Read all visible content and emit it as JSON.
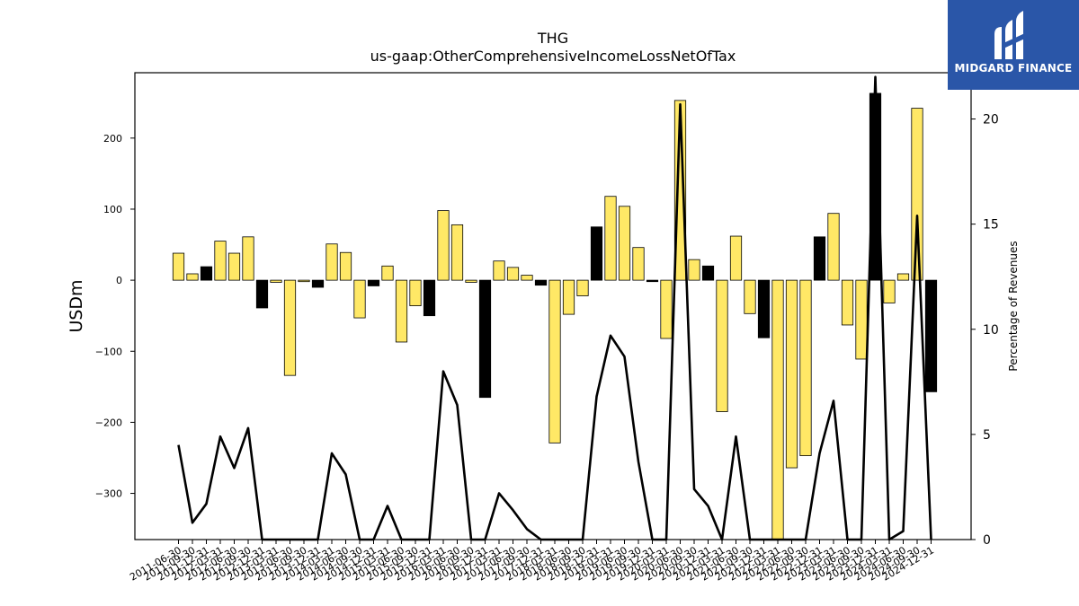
{
  "chart_data": {
    "type": "bar+line",
    "title": "THG",
    "subtitle": "us-gaap:OtherComprehensiveIncomeLossNetOfTax",
    "ylabel": "USDm",
    "y2label": "Percentage of Revenues",
    "ylim": [
      -365,
      292
    ],
    "y2lim": [
      0,
      22.2
    ],
    "yticks": [
      -300,
      -200,
      -100,
      0,
      100,
      200
    ],
    "y2ticks": [
      0,
      5,
      10,
      15,
      20
    ],
    "categories": [
      "2011-06-30",
      "2011-09-30",
      "2011-12-31",
      "2012-03-31",
      "2012-06-30",
      "2012-09-30",
      "2012-12-31",
      "2013-03-31",
      "2013-06-30",
      "2013-09-30",
      "2013-12-31",
      "2014-03-31",
      "2014-06-30",
      "2014-09-30",
      "2014-12-31",
      "2015-03-31",
      "2015-06-30",
      "2015-09-30",
      "2015-12-31",
      "2016-03-31",
      "2016-06-30",
      "2016-09-30",
      "2016-12-31",
      "2017-03-31",
      "2017-06-30",
      "2017-09-30",
      "2017-12-31",
      "2018-03-31",
      "2018-06-30",
      "2018-09-30",
      "2018-12-31",
      "2019-03-31",
      "2019-06-30",
      "2019-09-30",
      "2019-12-31",
      "2020-03-31",
      "2020-06-30",
      "2020-09-30",
      "2020-12-31",
      "2021-03-31",
      "2021-06-30",
      "2021-09-30",
      "2021-12-31",
      "2022-03-31",
      "2022-06-30",
      "2022-09-30",
      "2022-12-31",
      "2023-03-31",
      "2023-06-30",
      "2023-09-30",
      "2023-12-31",
      "2024-03-31",
      "2024-06-30",
      "2024-09-30",
      "2024-12-31"
    ],
    "series": [
      {
        "values": [
          38,
          9,
          19,
          55,
          38,
          61,
          -39,
          -3,
          -134,
          -2,
          -10,
          51,
          39,
          -53,
          -8,
          20,
          -87,
          -36,
          -50,
          98,
          78,
          -3,
          -165,
          27,
          18,
          7,
          -7,
          -229,
          -48,
          -22,
          75,
          118,
          104,
          46,
          -2,
          -82,
          253,
          29,
          20,
          -185,
          62,
          -47,
          -81,
          -365,
          -264,
          -247,
          61,
          94,
          -63,
          -111,
          263,
          -32,
          9,
          242,
          -157
        ]
      },
      {
        "values": [
          4.5,
          0.8,
          1.7,
          4.9,
          3.4,
          5.3,
          0,
          0,
          0,
          0,
          0,
          4.1,
          3.1,
          0,
          0,
          1.6,
          0,
          0,
          0,
          8.0,
          6.4,
          0,
          0,
          2.2,
          1.4,
          0.5,
          0,
          0,
          0,
          0,
          6.8,
          9.7,
          8.7,
          3.7,
          0,
          0,
          20.7,
          2.4,
          1.6,
          0,
          4.9,
          0,
          0,
          0,
          0,
          0,
          4.1,
          6.6,
          0,
          0,
          22.0,
          0,
          0.4,
          15.4,
          0
        ]
      }
    ],
    "colors": {
      "bar_positive": "#ffe866",
      "bar_black": "#000000",
      "line": "#000000"
    },
    "black_bars": [
      2,
      6,
      10,
      14,
      18,
      22,
      26,
      30,
      34,
      38,
      42,
      46,
      50,
      54
    ],
    "grid": false
  },
  "logo": {
    "text": "MIDGARD FINANCE"
  }
}
